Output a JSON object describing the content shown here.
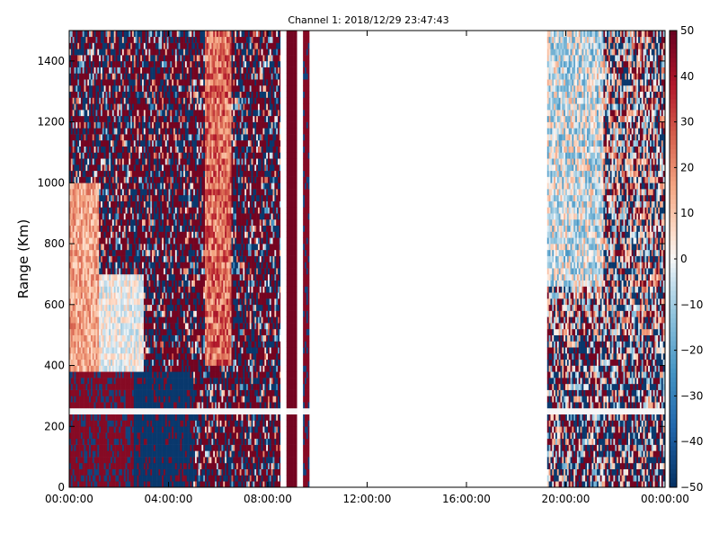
{
  "chart_data": {
    "type": "heatmap",
    "title": "Channel 1: 2018/12/29 23:47:43",
    "xlabel": "",
    "ylabel": "Range (Km)",
    "xlim": [
      "00:00:00",
      "24:00:00"
    ],
    "ylim": [
      0,
      1500
    ],
    "x_ticks": [
      "00:00:00",
      "04:00:00",
      "08:00:00",
      "12:00:00",
      "16:00:00",
      "20:00:00",
      "00:00:00"
    ],
    "y_ticks": [
      0,
      200,
      400,
      600,
      800,
      1000,
      1200,
      1400
    ],
    "colorbar": {
      "colormap": "RdBu_r",
      "min": -50,
      "max": 50,
      "ticks": [
        50,
        40,
        30,
        20,
        10,
        0,
        -10,
        -20,
        -30,
        -40,
        -50
      ],
      "low_color": "#053061",
      "mid_color": "#f7f7f7",
      "high_color": "#67001f"
    },
    "data_segments": [
      {
        "start": "00:00:00",
        "end": "08:30:00",
        "description_hidden": true
      },
      {
        "start": "08:45:00",
        "end": "09:10:00"
      },
      {
        "start": "09:25:00",
        "end": "09:40:00"
      },
      {
        "start": "19:15:00",
        "end": "24:00:00"
      }
    ],
    "range_gap_km": 250,
    "grid": false
  }
}
